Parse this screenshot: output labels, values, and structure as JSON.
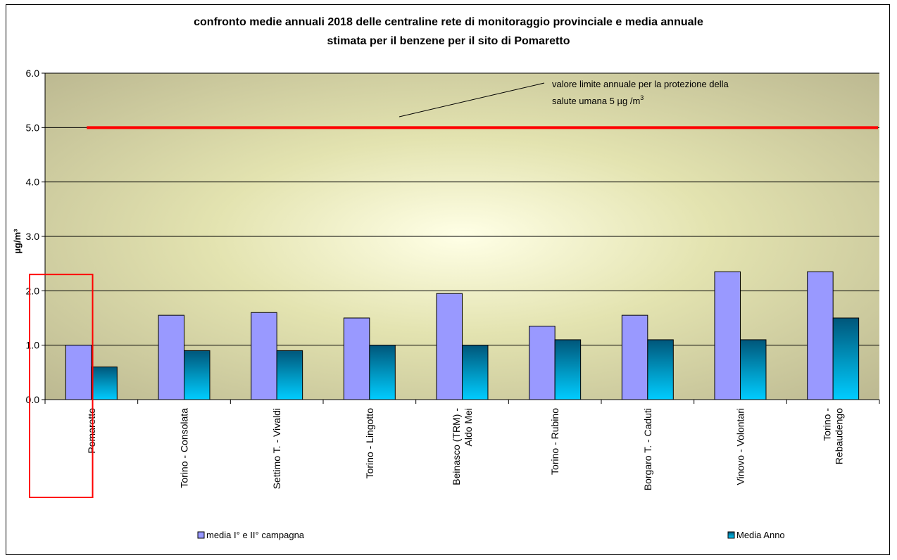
{
  "chart_data": {
    "type": "bar",
    "title_lines": [
      "confronto medie annuali 2018 delle centraline rete di monitoraggio provinciale e media annuale",
      "stimata  per il benzene per il sito di Pomaretto"
    ],
    "ylabel": "µg/m³",
    "ylim": [
      0,
      6
    ],
    "yticks": [
      "0.0",
      "1.0",
      "2.0",
      "3.0",
      "4.0",
      "5.0",
      "6.0"
    ],
    "grid": true,
    "categories": [
      [
        "Pomaretto"
      ],
      [
        "Torino - Consolata"
      ],
      [
        "Settimo T. - Vivaldi"
      ],
      [
        "Torino - Lingotto"
      ],
      [
        "Beinasco (TRM) -",
        "Aldo Mei"
      ],
      [
        "Torino - Rubino"
      ],
      [
        "Borgaro T. - Caduti"
      ],
      [
        "Vinovo - Volontari"
      ],
      [
        "Torino -",
        "Rebaudengo"
      ]
    ],
    "series": [
      {
        "name": "media I° e II° campagna",
        "color": "#9999ff",
        "values": [
          1.0,
          1.55,
          1.6,
          1.5,
          1.95,
          1.35,
          1.55,
          2.35,
          2.35
        ]
      },
      {
        "name": "Media Anno",
        "color": "#00ccff",
        "values": [
          0.6,
          0.9,
          0.9,
          1.0,
          1.0,
          1.1,
          1.1,
          1.1,
          1.5
        ]
      }
    ],
    "limit_line": {
      "value": 5.0,
      "color": "#ff0000"
    },
    "annotation": {
      "line1": "valore limite annuale per la protezione della",
      "line2": "salute umana 5 µg /m",
      "sup": "3"
    },
    "highlight": {
      "category_index": 0,
      "color": "#ff0000"
    },
    "legend_position": "bottom"
  }
}
